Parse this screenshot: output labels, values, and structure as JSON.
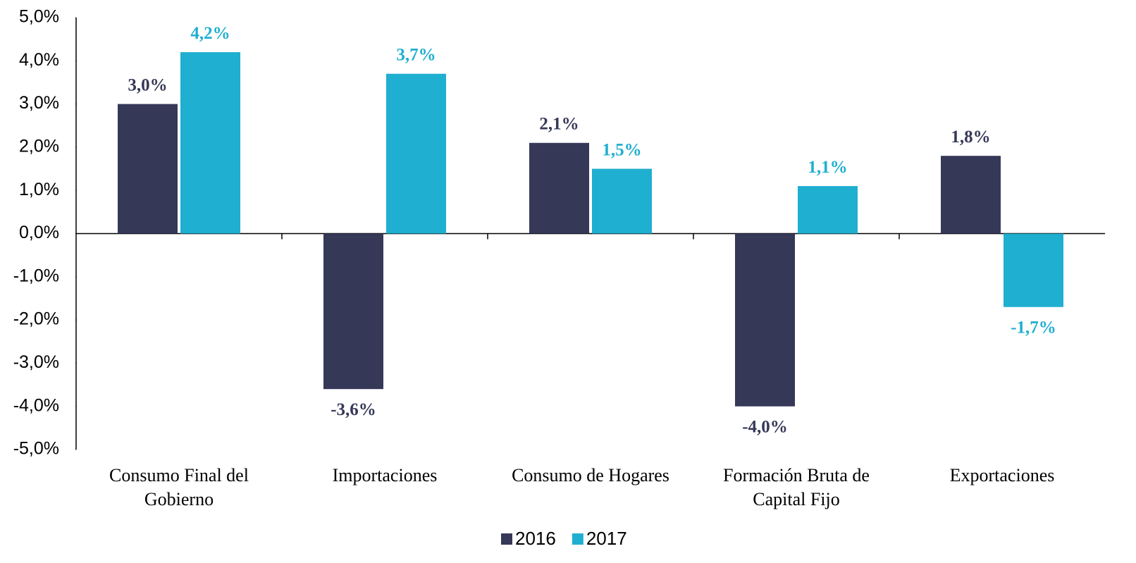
{
  "chart_data": {
    "type": "bar",
    "categories": [
      "Consumo Final del Gobierno",
      "Importaciones",
      "Consumo de Hogares",
      "Formación Bruta de Capital Fijo",
      "Exportaciones"
    ],
    "series": [
      {
        "name": "2016",
        "color": "#363858",
        "values": [
          3.0,
          -3.6,
          2.1,
          -4.0,
          1.8
        ],
        "value_labels": [
          "3,0%",
          "-3,6%",
          "2,1%",
          "-4,0%",
          "1,8%"
        ]
      },
      {
        "name": "2017",
        "color": "#1fafd0",
        "values": [
          4.2,
          3.7,
          1.5,
          1.1,
          -1.7
        ],
        "value_labels": [
          "4,2%",
          "3,7%",
          "1,5%",
          "1,1%",
          "-1,7%"
        ]
      }
    ],
    "ylim": [
      -5,
      5
    ],
    "yticks": [
      {
        "value": 5,
        "label": "5,0%"
      },
      {
        "value": 4,
        "label": "4,0%"
      },
      {
        "value": 3,
        "label": "3,0%"
      },
      {
        "value": 2,
        "label": "2,0%"
      },
      {
        "value": 1,
        "label": "1,0%"
      },
      {
        "value": 0,
        "label": "0,0%"
      },
      {
        "value": -1,
        "label": "-1,0%"
      },
      {
        "value": -2,
        "label": "-2,0%"
      },
      {
        "value": -3,
        "label": "-3,0%"
      },
      {
        "value": -4,
        "label": "-4,0%"
      },
      {
        "value": -5,
        "label": "-5,0%"
      }
    ],
    "grid": false,
    "legend": "bottom"
  }
}
